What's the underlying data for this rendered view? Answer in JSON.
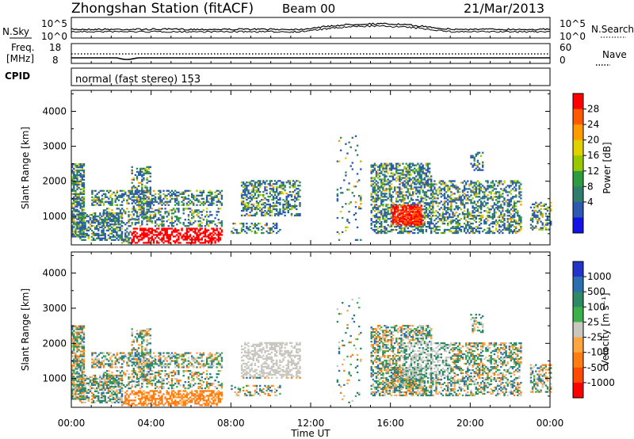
{
  "header": {
    "station": "Zhongshan Station (fitACF)",
    "beam": "Beam 00",
    "date": "21/Mar/2013"
  },
  "noise_panel": {
    "left_label": "N.Sky",
    "left_ticks": [
      "10^5",
      "10^0"
    ],
    "right_label": "N.Search",
    "right_ticks": [
      "10^5",
      "10^0"
    ]
  },
  "freq_panel": {
    "left_label_1": "Freq.",
    "left_label_2": "[MHz]",
    "left_ticks": [
      "18",
      "8"
    ],
    "right_label": "Nave",
    "right_ticks": [
      "60",
      "0"
    ]
  },
  "cpid": {
    "label": "CPID",
    "value": "normal (fast stereo) 153"
  },
  "chart_data": [
    {
      "type": "heatmap",
      "name": "power",
      "ylabel": "Slant Range [km]",
      "ylim": [
        180,
        4600
      ],
      "yticks": [
        "4000",
        "3000",
        "2000",
        "1000"
      ],
      "xlabel": "Time UT",
      "xticks": [
        "00:00",
        "04:00",
        "08:00",
        "12:00",
        "16:00",
        "20:00",
        "00:00"
      ],
      "colorbar_label": "Power [dB]",
      "colorbar_ticks": [
        "28",
        "24",
        "20",
        "16",
        "12",
        "8",
        "4"
      ],
      "colorbar_colors": [
        "#ff0000",
        "#ff5a00",
        "#ff9a00",
        "#e0d000",
        "#9ac800",
        "#2e9b3e",
        "#2f7d6a",
        "#2d59b0",
        "#1313e6"
      ]
    },
    {
      "type": "heatmap",
      "name": "velocity",
      "ylabel": "Slant Range [km]",
      "ylim": [
        180,
        4600
      ],
      "yticks": [
        "4000",
        "3000",
        "2000",
        "1000"
      ],
      "xlabel": "Time UT",
      "xticks": [
        "00:00",
        "04:00",
        "08:00",
        "12:00",
        "16:00",
        "20:00",
        "00:00"
      ],
      "colorbar_label": "Velocity [m s⁻¹]",
      "colorbar_ticks": [
        "1000",
        "500",
        "100",
        "25",
        "-25",
        "-100",
        "-500",
        "-1000"
      ],
      "colorbar_colors": [
        "#2533c8",
        "#2c6fb0",
        "#2e8a66",
        "#3cb04a",
        "#c8c8c0",
        "#ffa640",
        "#ff7d10",
        "#ff4a00",
        "#ff0000"
      ]
    }
  ]
}
